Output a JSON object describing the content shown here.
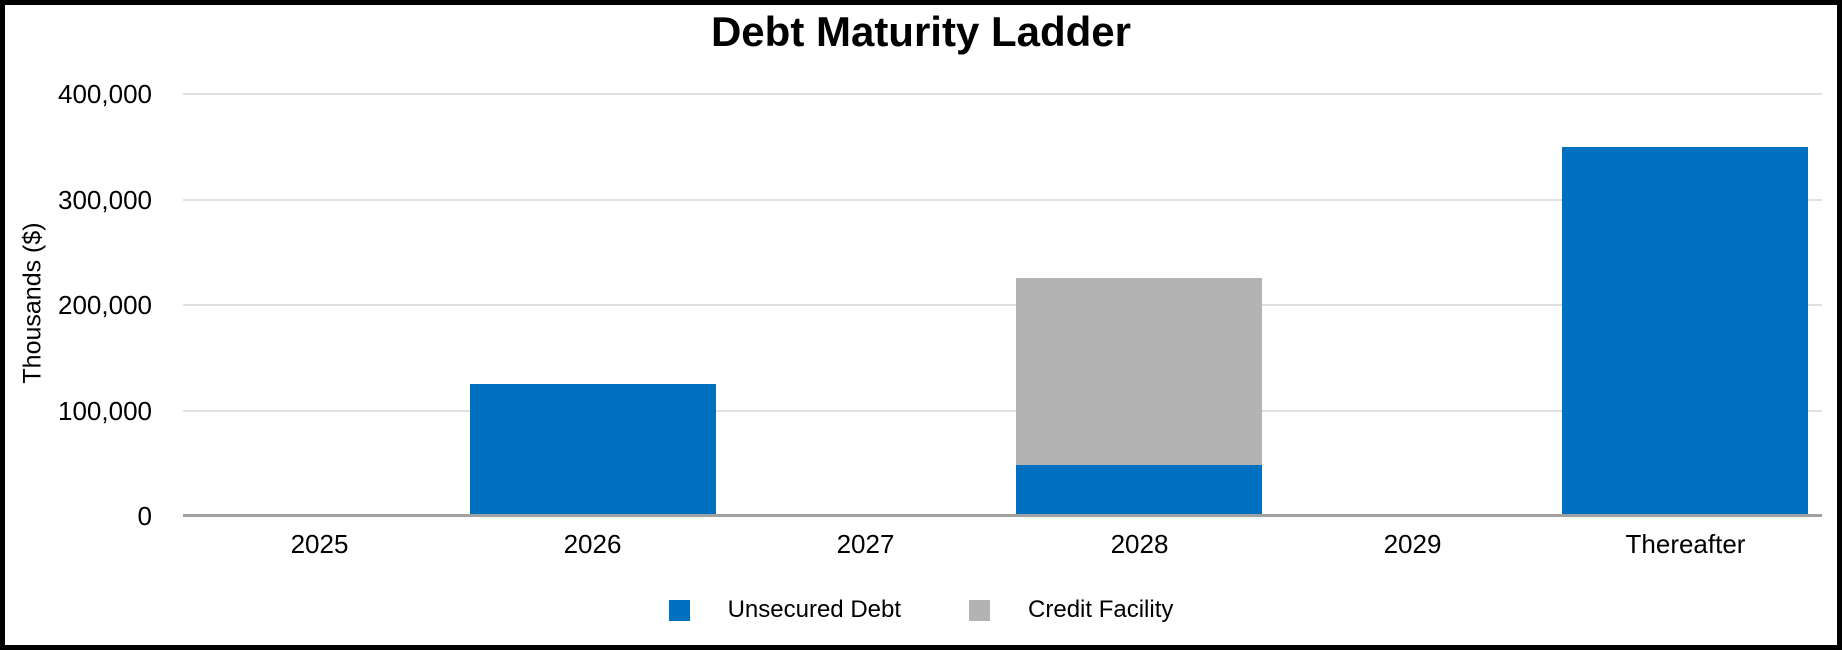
{
  "chart_data": {
    "type": "bar",
    "stacked": true,
    "title": "Debt Maturity Ladder",
    "ylabel": "Thousands ($)",
    "xlabel": "",
    "categories": [
      "2025",
      "2026",
      "2027",
      "2028",
      "2029",
      "Thereafter"
    ],
    "series": [
      {
        "name": "Unsecured Debt",
        "color": "#0070C0",
        "values": [
          0,
          125000,
          0,
          48000,
          0,
          350000
        ]
      },
      {
        "name": "Credit Facility",
        "color": "#B3B3B3",
        "values": [
          0,
          0,
          0,
          178000,
          0,
          0
        ]
      }
    ],
    "ylim": [
      0,
      400000
    ],
    "ytick_step": 100000,
    "ytick_labels": [
      "0",
      "100,000",
      "200,000",
      "300,000",
      "400,000"
    ],
    "grid": true,
    "legend_position": "bottom",
    "axis_line_color": "#a1a1a1",
    "gridline_color": "#e0e0e0"
  }
}
